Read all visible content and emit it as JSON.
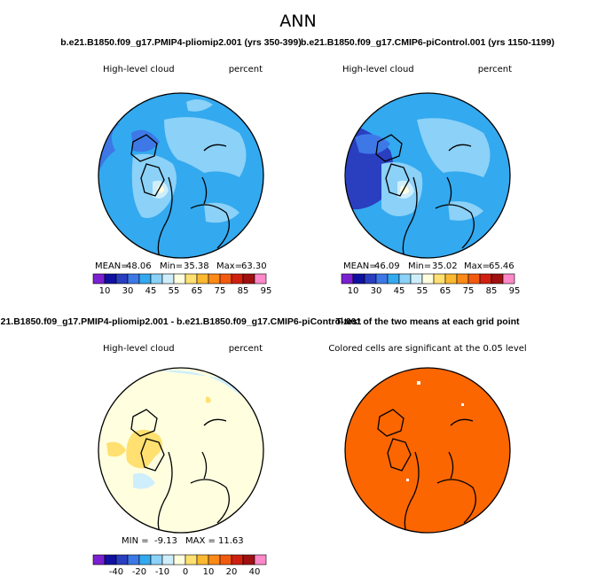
{
  "season": "ANN",
  "top_left_title": "b.e21.B1850.f09_g17.PMIP4-pliomip2.001 (yrs 350-399)",
  "top_right_title": "b.e21.B1850.f09_g17.CMIP6-piControl.001 (yrs 1150-1199)",
  "bottom_left_title": "21.B1850.f09_g17.PMIP4-pliomip2.001 - b.e21.B1850.f09_g17.CMIP6-piControl.001",
  "bottom_right_title": "T-test of the two means at each grid point",
  "chart_data": [
    {
      "type": "heatmap",
      "projection": "north-polar-stereographic",
      "variable": "High-level cloud",
      "units": "percent",
      "stats": {
        "mean_label": "MEAN=",
        "mean": "48.06",
        "min_label": "Min=",
        "min": "35.38",
        "max_label": "Max=",
        "max": "63.30"
      },
      "colorbar": {
        "tick_labels": [
          "10",
          "30",
          "45",
          "55",
          "65",
          "75",
          "85",
          "95"
        ],
        "colors": [
          "#7a20d0",
          "#1010a0",
          "#2a3ec0",
          "#3d78e6",
          "#33a9ef",
          "#8bd1f8",
          "#cfeefc",
          "#ffffe0",
          "#ffe070",
          "#fbb830",
          "#fb8a18",
          "#f25a10",
          "#d02010",
          "#a01010",
          "#ff88c8"
        ]
      }
    },
    {
      "type": "heatmap",
      "projection": "north-polar-stereographic",
      "variable": "High-level cloud",
      "units": "percent",
      "stats": {
        "mean_label": "MEAN=",
        "mean": "46.09",
        "min_label": "Min=",
        "min": "35.02",
        "max_label": "Max=",
        "max": "65.46"
      },
      "colorbar": {
        "tick_labels": [
          "10",
          "30",
          "45",
          "55",
          "65",
          "75",
          "85",
          "95"
        ],
        "colors": [
          "#7a20d0",
          "#1010a0",
          "#2a3ec0",
          "#3d78e6",
          "#33a9ef",
          "#8bd1f8",
          "#cfeefc",
          "#ffffe0",
          "#ffe070",
          "#fbb830",
          "#fb8a18",
          "#f25a10",
          "#d02010",
          "#a01010",
          "#ff88c8"
        ]
      }
    },
    {
      "type": "heatmap",
      "projection": "north-polar-stereographic",
      "variable": "High-level cloud",
      "units": "percent",
      "stats": {
        "mean_label": "",
        "mean": "",
        "min_label": "MIN =",
        "min": "-9.13",
        "max_label": "MAX =",
        "max": "11.63"
      },
      "colorbar": {
        "tick_labels": [
          "-40",
          "-20",
          "-10",
          "0",
          "10",
          "20",
          "40"
        ],
        "colors": [
          "#7a20d0",
          "#1010a0",
          "#2a3ec0",
          "#3d78e6",
          "#33a9ef",
          "#8bd1f8",
          "#cfeefc",
          "#ffffe0",
          "#ffe070",
          "#fbb830",
          "#fb8a18",
          "#f25a10",
          "#d02010",
          "#a01010",
          "#ff88c8"
        ]
      }
    },
    {
      "type": "heatmap",
      "projection": "north-polar-stereographic",
      "annotation": "Colored cells are significant at the 0.05 level",
      "fill_color": "#fb6600"
    }
  ]
}
